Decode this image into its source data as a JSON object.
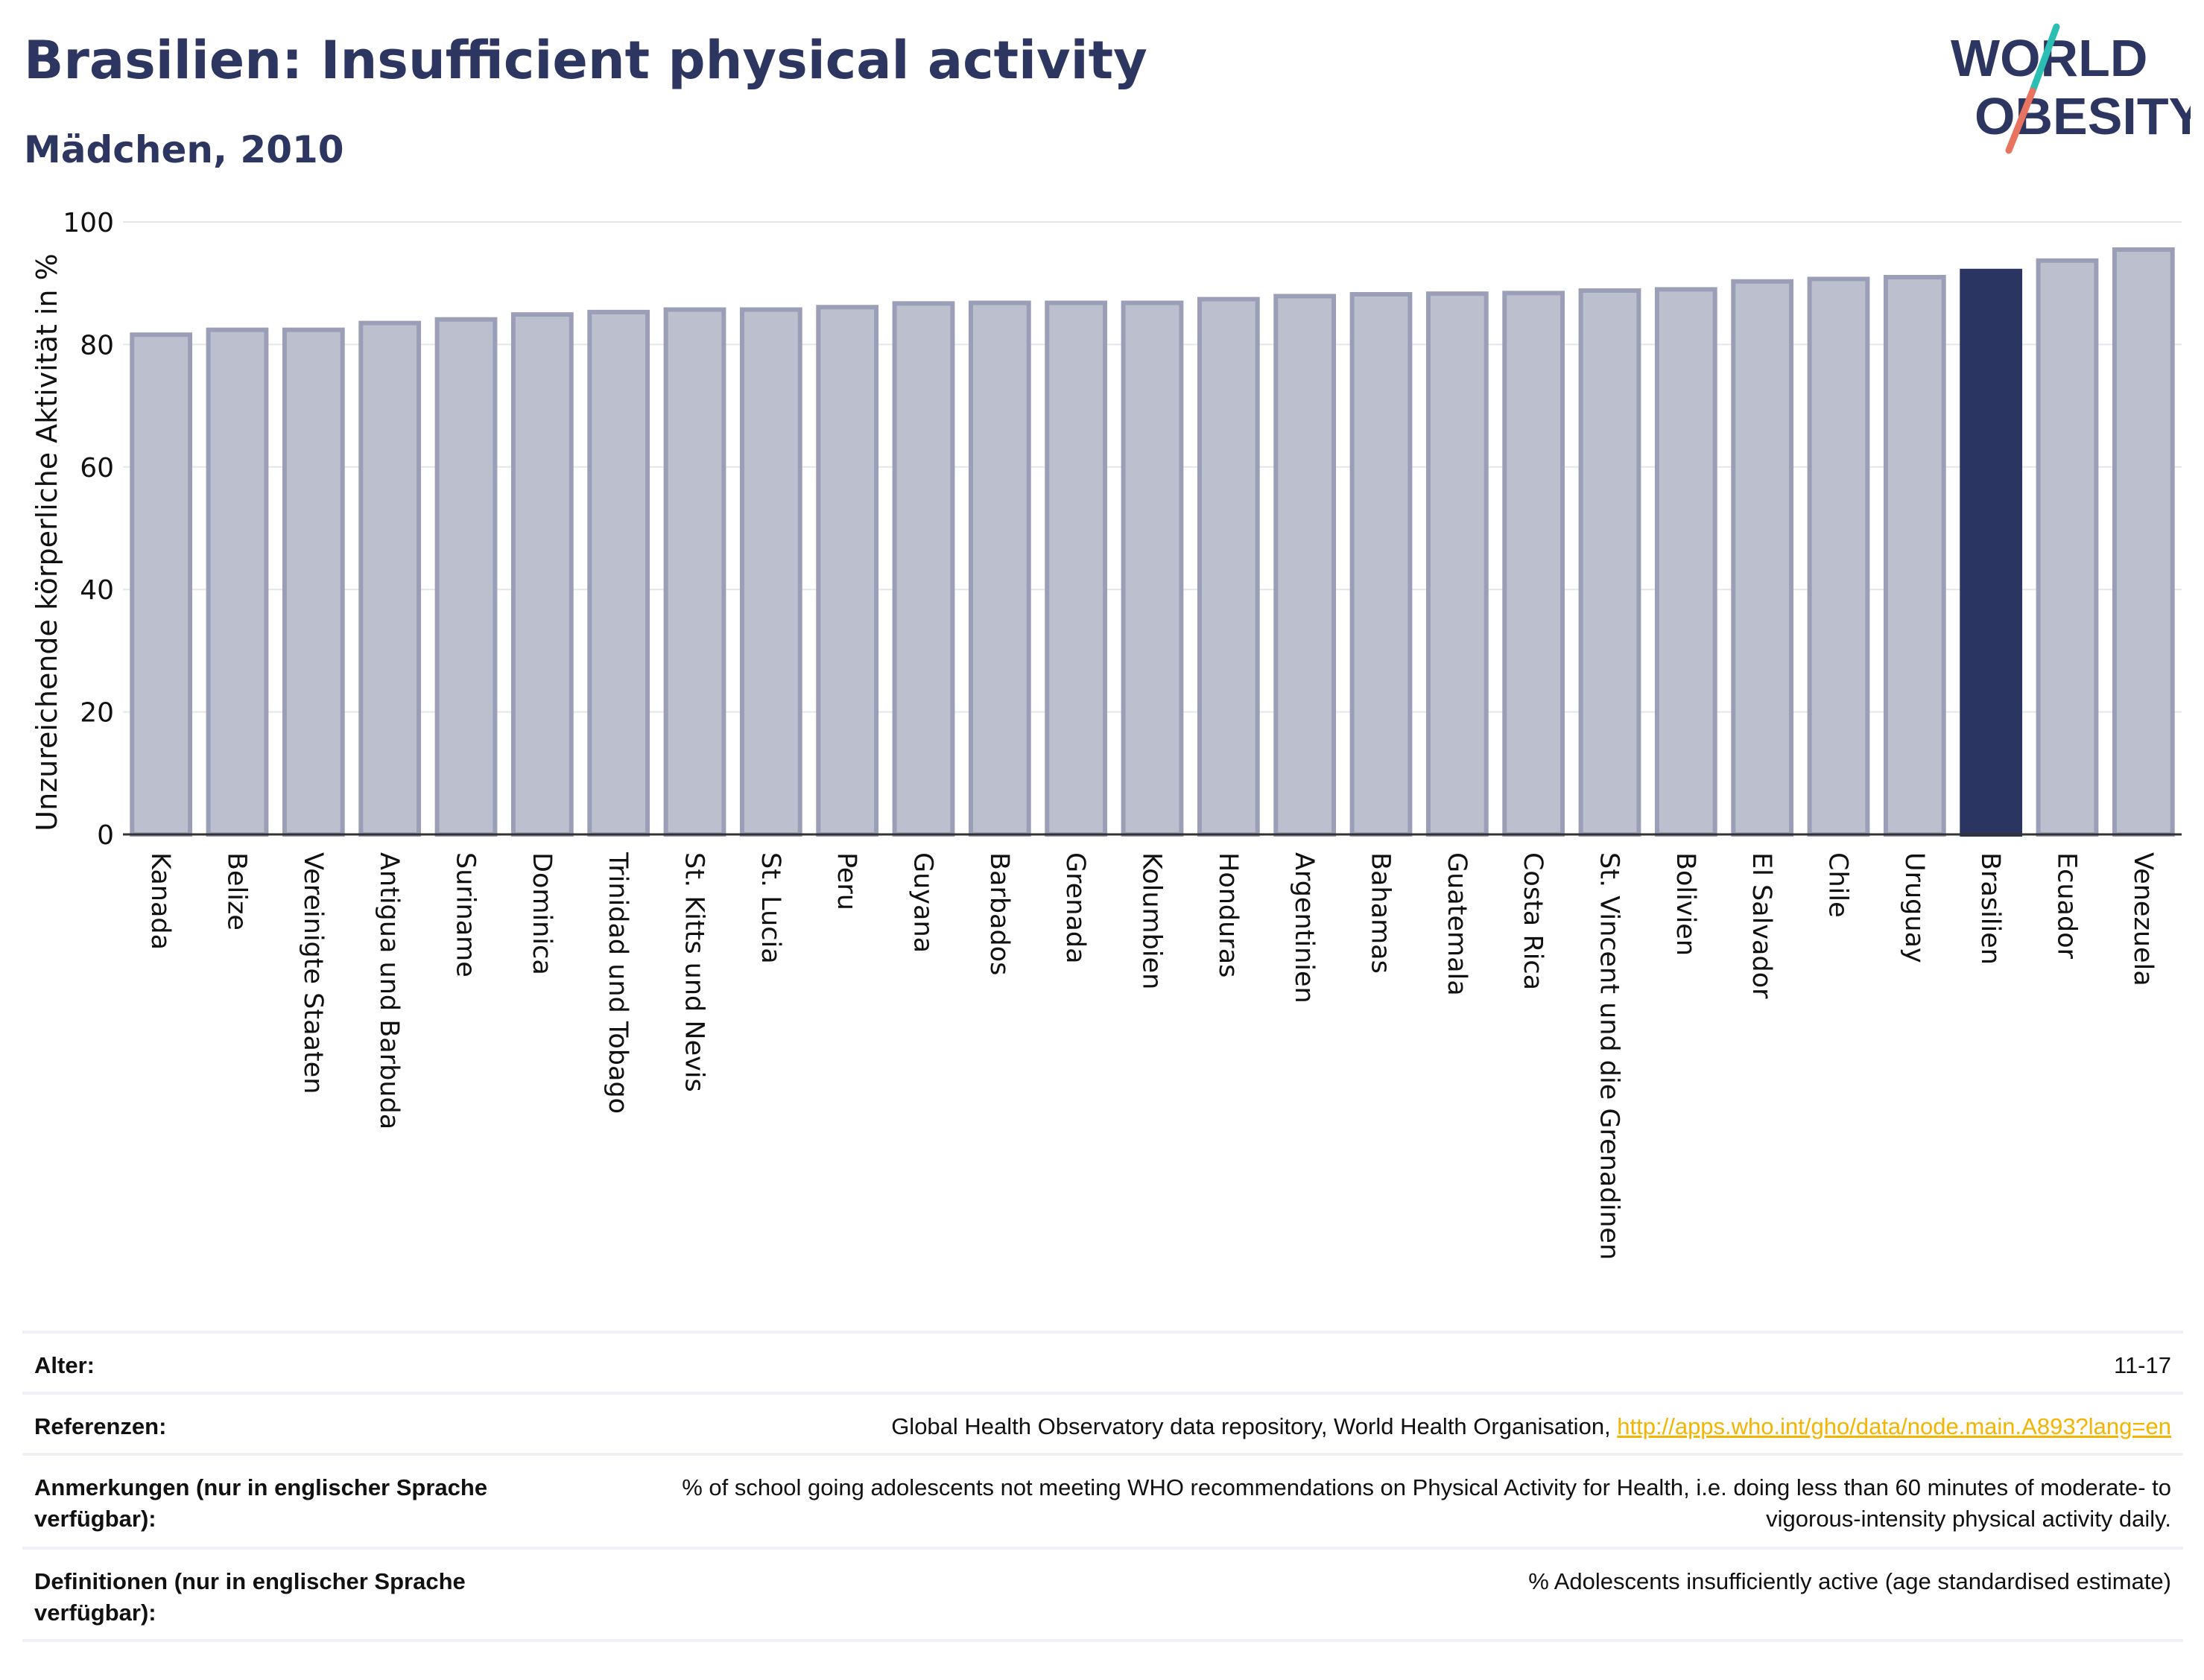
{
  "header": {
    "title": "Brasilien: Insufficient physical activity",
    "subtitle": "Mädchen, 2010",
    "logo_line1": "WORLD",
    "logo_line2": "OBESITY"
  },
  "colors": {
    "title": "#2d3561",
    "bar": "#bcc0ce",
    "bar_edge": "#9a9fb7",
    "highlight": "#2b3562",
    "logo_teal": "#2bbfb3",
    "logo_coral": "#e8735e",
    "link": "#f4b400"
  },
  "chart_data": {
    "type": "bar",
    "ylabel": "Unzureichende körperliche Aktivität in %",
    "ylim": [
      0,
      100
    ],
    "yticks": [
      0,
      20,
      40,
      60,
      80,
      100
    ],
    "grid": true,
    "highlight_category": "Brasilien",
    "categories": [
      "Kanada",
      "Belize",
      "Vereinigte Staaten",
      "Antigua und Barbuda",
      "Suriname",
      "Dominica",
      "Trinidad und Tobago",
      "St. Kitts und Nevis",
      "St. Lucia",
      "Peru",
      "Guyana",
      "Barbados",
      "Grenada",
      "Kolumbien",
      "Honduras",
      "Argentinien",
      "Bahamas",
      "Guatemala",
      "Costa Rica",
      "St. Vincent und die Grenadinen",
      "Bolivien",
      "El Salvador",
      "Chile",
      "Uruguay",
      "Brasilien",
      "Ecuador",
      "Venezuela"
    ],
    "values": [
      81.6,
      82.4,
      82.4,
      83.5,
      84.1,
      84.9,
      85.3,
      85.7,
      85.7,
      86.1,
      86.7,
      86.8,
      86.8,
      86.8,
      87.4,
      87.9,
      88.2,
      88.3,
      88.4,
      88.8,
      89.0,
      90.3,
      90.7,
      91.0,
      92.0,
      93.7,
      95.5
    ]
  },
  "meta": {
    "age_label": "Alter:",
    "age_value": "11-17",
    "ref_label": "Referenzen:",
    "ref_text": "Global Health Observatory data repository, World Health Organisation, ",
    "ref_link": "http://apps.who.int/gho/data/node.main.A893?lang=en",
    "notes_label": "Anmerkungen (nur in englischer Sprache verfügbar):",
    "notes_value": "% of school going adolescents not meeting WHO recommendations on Physical Activity for Health, i.e. doing less than 60 minutes of moderate- to vigorous-intensity physical activity daily.",
    "def_label": "Definitionen (nur in englischer Sprache verfügbar):",
    "def_value": "% Adolescents insufficiently active (age standardised estimate)"
  }
}
